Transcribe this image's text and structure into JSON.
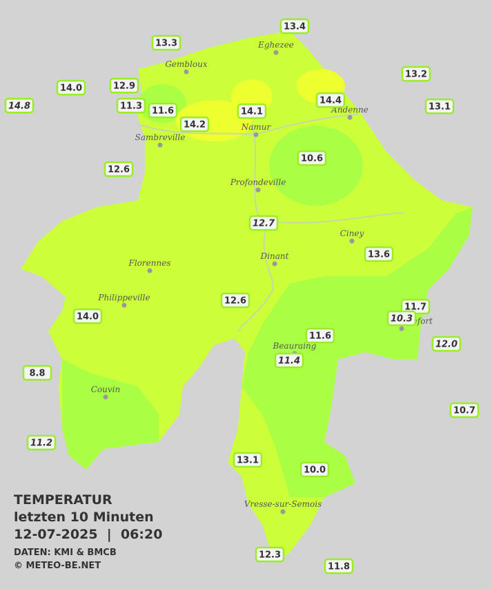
{
  "stations": [
    "13.4",
    "13.3",
    "13.2",
    "14.0",
    "12.9",
    "14.8",
    "11.3",
    "11.6",
    "14.1",
    "14.4",
    "13.1",
    "14.2",
    "10.6",
    "12.6",
    "12.7",
    "13.6",
    "12.6",
    "11.7",
    "10.3",
    "14.0",
    "11.6",
    "12.0",
    "11.4",
    "8.8",
    "10.7",
    "11.2",
    "13.1",
    "10.0",
    "12.3",
    "11.8"
  ],
  "cities": [
    "Eghezee",
    "Gembloux",
    "Andenne",
    "Sambreville",
    "Namur",
    "Profondeville",
    "Ciney",
    "Dinant",
    "Florennes",
    "Philippeville",
    "Rochefort",
    "Beauraing",
    "Couvin",
    "Vresse-sur-Semois"
  ],
  "title": {
    "heading": "TEMPERATUR",
    "period": "letzten 10 Minuten",
    "datetime": "12-07-2025  |  06:20",
    "source": "DATEN: KMI & BMCB",
    "copyright": "© METEO-BE.NET"
  }
}
